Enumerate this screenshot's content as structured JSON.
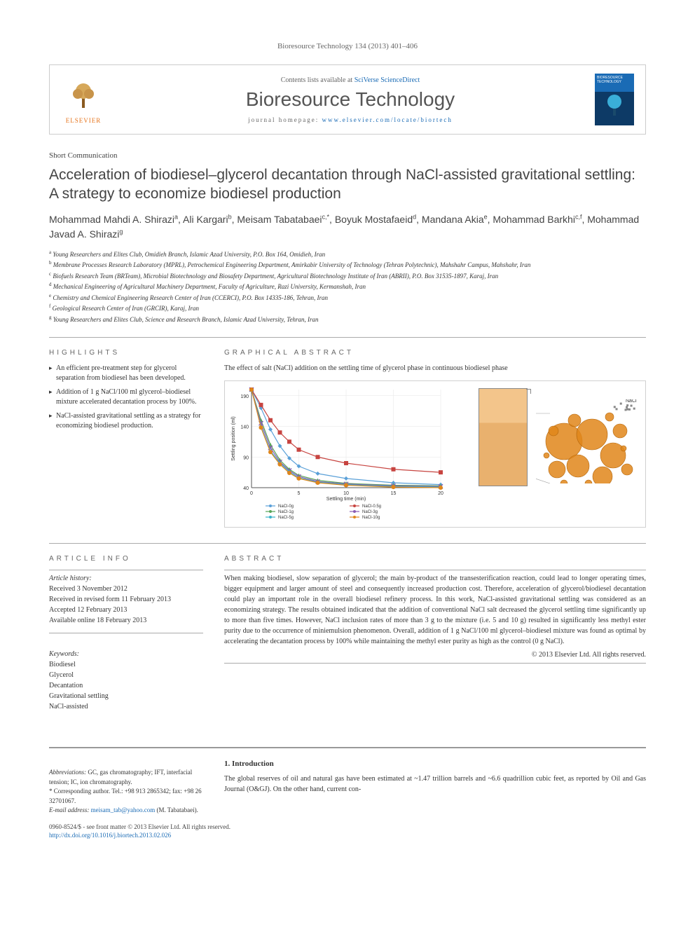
{
  "journal_ref": "Bioresource Technology 134 (2013) 401–406",
  "header": {
    "contents_prefix": "Contents lists available at ",
    "contents_link": "SciVerse ScienceDirect",
    "journal_name": "Bioresource Technology",
    "homepage_prefix": "journal homepage: ",
    "homepage_url": "www.elsevier.com/locate/biortech",
    "publisher": "ELSEVIER"
  },
  "article": {
    "type": "Short Communication",
    "title": "Acceleration of biodiesel–glycerol decantation through NaCl-assisted gravitational settling: A strategy to economize biodiesel production",
    "authors_html": "Mohammad Mahdi A. Shirazi<sup>a</sup>, Ali Kargari<sup>b</sup>, Meisam Tabatabaei<sup>c,*</sup>, Boyuk Mostafaeid<sup>d</sup>, Mandana Akia<sup>e</sup>, Mohammad Barkhi<sup>c,f</sup>, Mohammad Javad A. Shirazi<sup>g</sup>",
    "affiliations": [
      "a Young Researchers and Elites Club, Omidieh Branch, Islamic Azad University, P.O. Box 164, Omidieh, Iran",
      "b Membrane Processes Research Laboratory (MPRL), Petrochemical Engineering Department, Amirkabir University of Technology (Tehran Polytechnic), Mahshahr Campus, Mahshahr, Iran",
      "c Biofuels Research Team (BRTeam), Microbial Biotechnology and Biosafety Department, Agricultural Biotechnology Institute of Iran (ABRII), P.O. Box 31535-1897, Karaj, Iran",
      "d Mechanical Engineering of Agricultural Machinery Department, Faculty of Agriculture, Razi University, Kermanshah, Iran",
      "e Chemistry and Chemical Engineering Research Center of Iran (CCERCI), P.O. Box 14335-186, Tehran, Iran",
      "f Geological Research Center of Iran (GRCIR), Karaj, Iran",
      "g Young Researchers and Elites Club, Science and Research Branch, Islamic Azad University, Tehran, Iran"
    ]
  },
  "highlights": {
    "label": "HIGHLIGHTS",
    "items": [
      "An efficient pre-treatment step for glycerol separation from biodiesel has been developed.",
      "Addition of 1 g NaCl/100 ml glycerol–biodiesel mixture accelerated decantation process by 100%.",
      "NaCl-assisted gravitational settling as a strategy for economizing biodiesel production."
    ]
  },
  "graphical_abstract": {
    "label": "GRAPHICAL ABSTRACT",
    "caption": "The effect of salt (NaCl) addition on the settling time of glycerol phase in continuous biodiesel phase",
    "chart": {
      "type": "line",
      "xlabel": "Settling time (min)",
      "ylabel": "Settling position (ml)",
      "xlim": [
        0,
        20
      ],
      "ylim": [
        40,
        200
      ],
      "xtick_step": 5,
      "ytick_step": 50,
      "grid_on": true,
      "grid_color": "#e5e5e5",
      "axis_color": "#555555",
      "label_fontsize": 7,
      "tick_fontsize": 6,
      "background_color": "#ffffff",
      "line_width": 1.2,
      "marker_size": 3,
      "series": [
        {
          "name": "NaCl-0g",
          "color": "#5aa0d8",
          "marker": "diamond",
          "x": [
            0,
            1,
            2,
            3,
            4,
            5,
            7,
            10,
            15,
            20
          ],
          "y": [
            200,
            170,
            135,
            108,
            88,
            75,
            63,
            55,
            48,
            45
          ]
        },
        {
          "name": "NaCl-0.5g",
          "color": "#c74440",
          "marker": "square",
          "x": [
            0,
            1,
            2,
            3,
            4,
            5,
            7,
            10,
            15,
            20
          ],
          "y": [
            200,
            175,
            150,
            130,
            115,
            102,
            90,
            80,
            70,
            65
          ]
        },
        {
          "name": "NaCl-1g",
          "color": "#58a558",
          "marker": "triangle",
          "x": [
            0,
            1,
            2,
            3,
            4,
            5,
            7,
            10,
            15,
            20
          ],
          "y": [
            200,
            150,
            110,
            85,
            70,
            60,
            52,
            47,
            44,
            43
          ]
        },
        {
          "name": "NaCl-3g",
          "color": "#8a5bb3",
          "marker": "x",
          "x": [
            0,
            1,
            2,
            3,
            4,
            5,
            7,
            10,
            15,
            20
          ],
          "y": [
            200,
            145,
            105,
            82,
            68,
            58,
            50,
            46,
            43,
            42
          ]
        },
        {
          "name": "NaCl-5g",
          "color": "#3ab2c9",
          "marker": "star",
          "x": [
            0,
            1,
            2,
            3,
            4,
            5,
            7,
            10,
            15,
            20
          ],
          "y": [
            200,
            140,
            100,
            80,
            66,
            56,
            49,
            45,
            42,
            41
          ]
        },
        {
          "name": "NaCl-10g",
          "color": "#e0861a",
          "marker": "circle",
          "x": [
            0,
            1,
            2,
            3,
            4,
            5,
            7,
            10,
            15,
            20
          ],
          "y": [
            200,
            138,
            98,
            78,
            64,
            55,
            48,
            44,
            41,
            40
          ]
        }
      ],
      "legend_cols": 2
    },
    "inset": {
      "beaker_top_color": "#f3c58b",
      "beaker_bottom_color": "#e9b16e",
      "circle_fill": "#e0861a",
      "circle_radii": [
        26,
        22,
        18,
        16,
        14,
        12,
        10,
        9,
        8,
        7,
        6,
        5,
        5,
        4,
        4
      ],
      "nacl_label": "NaCl"
    }
  },
  "article_info": {
    "label": "ARTICLE INFO",
    "history_heading": "Article history:",
    "history": [
      "Received 3 November 2012",
      "Received in revised form 11 February 2013",
      "Accepted 12 February 2013",
      "Available online 18 February 2013"
    ],
    "keywords_heading": "Keywords:",
    "keywords": [
      "Biodiesel",
      "Glycerol",
      "Decantation",
      "Gravitational settling",
      "NaCl-assisted"
    ]
  },
  "abstract": {
    "label": "ABSTRACT",
    "body": "When making biodiesel, slow separation of glycerol; the main by-product of the transesterification reaction, could lead to longer operating times, bigger equipment and larger amount of steel and consequently increased production cost. Therefore, acceleration of glycerol/biodiesel decantation could play an important role in the overall biodiesel refinery process. In this work, NaCl-assisted gravitational settling was considered as an economizing strategy. The results obtained indicated that the addition of conventional NaCl salt decreased the glycerol settling time significantly up to more than five times. However, NaCl inclusion rates of more than 3 g to the mixture (i.e. 5 and 10 g) resulted in significantly less methyl ester purity due to the occurrence of miniemulsion phenomenon. Overall, addition of 1 g NaCl/100 ml glycerol–biodiesel mixture was found as optimal by accelerating the decantation process by 100% while maintaining the methyl ester purity as high as the control (0 g NaCl).",
    "copyright": "© 2013 Elsevier Ltd. All rights reserved."
  },
  "footnotes": {
    "abbrev_label": "Abbreviations:",
    "abbrev_text": " GC, gas chromatography; IFT, interfacial tension; IC, ion chromatography.",
    "corr_label": "* Corresponding author. ",
    "corr_text": "Tel.: +98 913 2865342; fax: +98 26 32701067.",
    "email_label": "E-mail address: ",
    "email": "meisam_tab@yahoo.com",
    "email_suffix": " (M. Tabatabaei)."
  },
  "introduction": {
    "heading": "1. Introduction",
    "body": "The global reserves of oil and natural gas have been estimated at ~1.47 trillion barrels and ~6.6 quadrillion cubic feet, as reported by Oil and Gas Journal (O&GJ). On the other hand, current con-"
  },
  "footer": {
    "line1": "0960-8524/$ - see front matter © 2013 Elsevier Ltd. All rights reserved.",
    "doi": "http://dx.doi.org/10.1016/j.biortech.2013.02.026"
  },
  "colors": {
    "link": "#1a6bb5",
    "elsevier": "#e6731a",
    "text": "#333333",
    "rule": "#999999"
  }
}
